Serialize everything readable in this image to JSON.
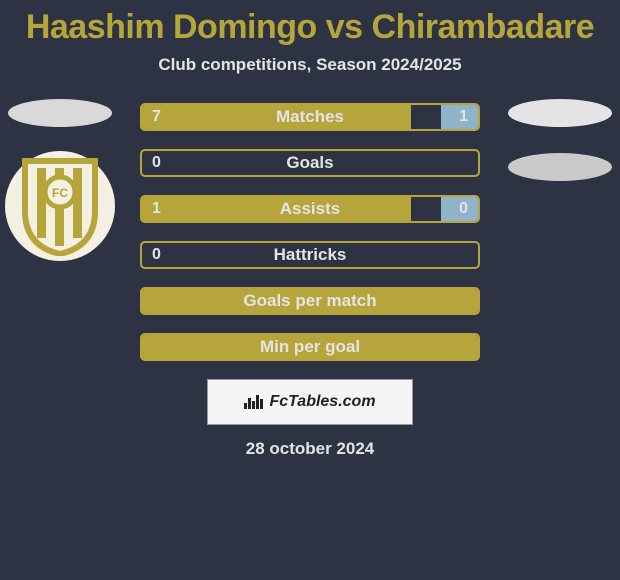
{
  "title": "Haashim Domingo vs Chirambadare",
  "subtitle": "Club competitions, Season 2024/2025",
  "colors": {
    "bg": "#2d3342",
    "accent": "#b6a53a",
    "right_fill": "#8fb3c9",
    "text": "#e4e4e6",
    "club_badge_bg": "#f4f0e2",
    "ellipse_left": "#d9d9d9",
    "ellipse_right1": "#e4e4e4",
    "ellipse_right2": "#cacaca",
    "footer_bg": "#f5f5f5"
  },
  "club_badge": {
    "stripe_color": "#b6a53a",
    "label": "FC"
  },
  "stats": [
    {
      "label": "Matches",
      "left_val": "7",
      "right_val": "1",
      "left_pct": 80,
      "right_pct": 11,
      "show_right": true
    },
    {
      "label": "Goals",
      "left_val": "0",
      "right_val": "",
      "left_pct": 0,
      "right_pct": 0,
      "show_right": false
    },
    {
      "label": "Assists",
      "left_val": "1",
      "right_val": "0",
      "left_pct": 80,
      "right_pct": 11,
      "show_right": true
    },
    {
      "label": "Hattricks",
      "left_val": "0",
      "right_val": "",
      "left_pct": 0,
      "right_pct": 0,
      "show_right": false
    },
    {
      "label": "Goals per match",
      "left_val": "",
      "right_val": "",
      "left_pct": 100,
      "right_pct": 0,
      "show_right": false
    },
    {
      "label": "Min per goal",
      "left_val": "",
      "right_val": "",
      "left_pct": 100,
      "right_pct": 0,
      "show_right": false
    }
  ],
  "footer": {
    "brand": "FcTables.com",
    "date": "28 october 2024"
  }
}
